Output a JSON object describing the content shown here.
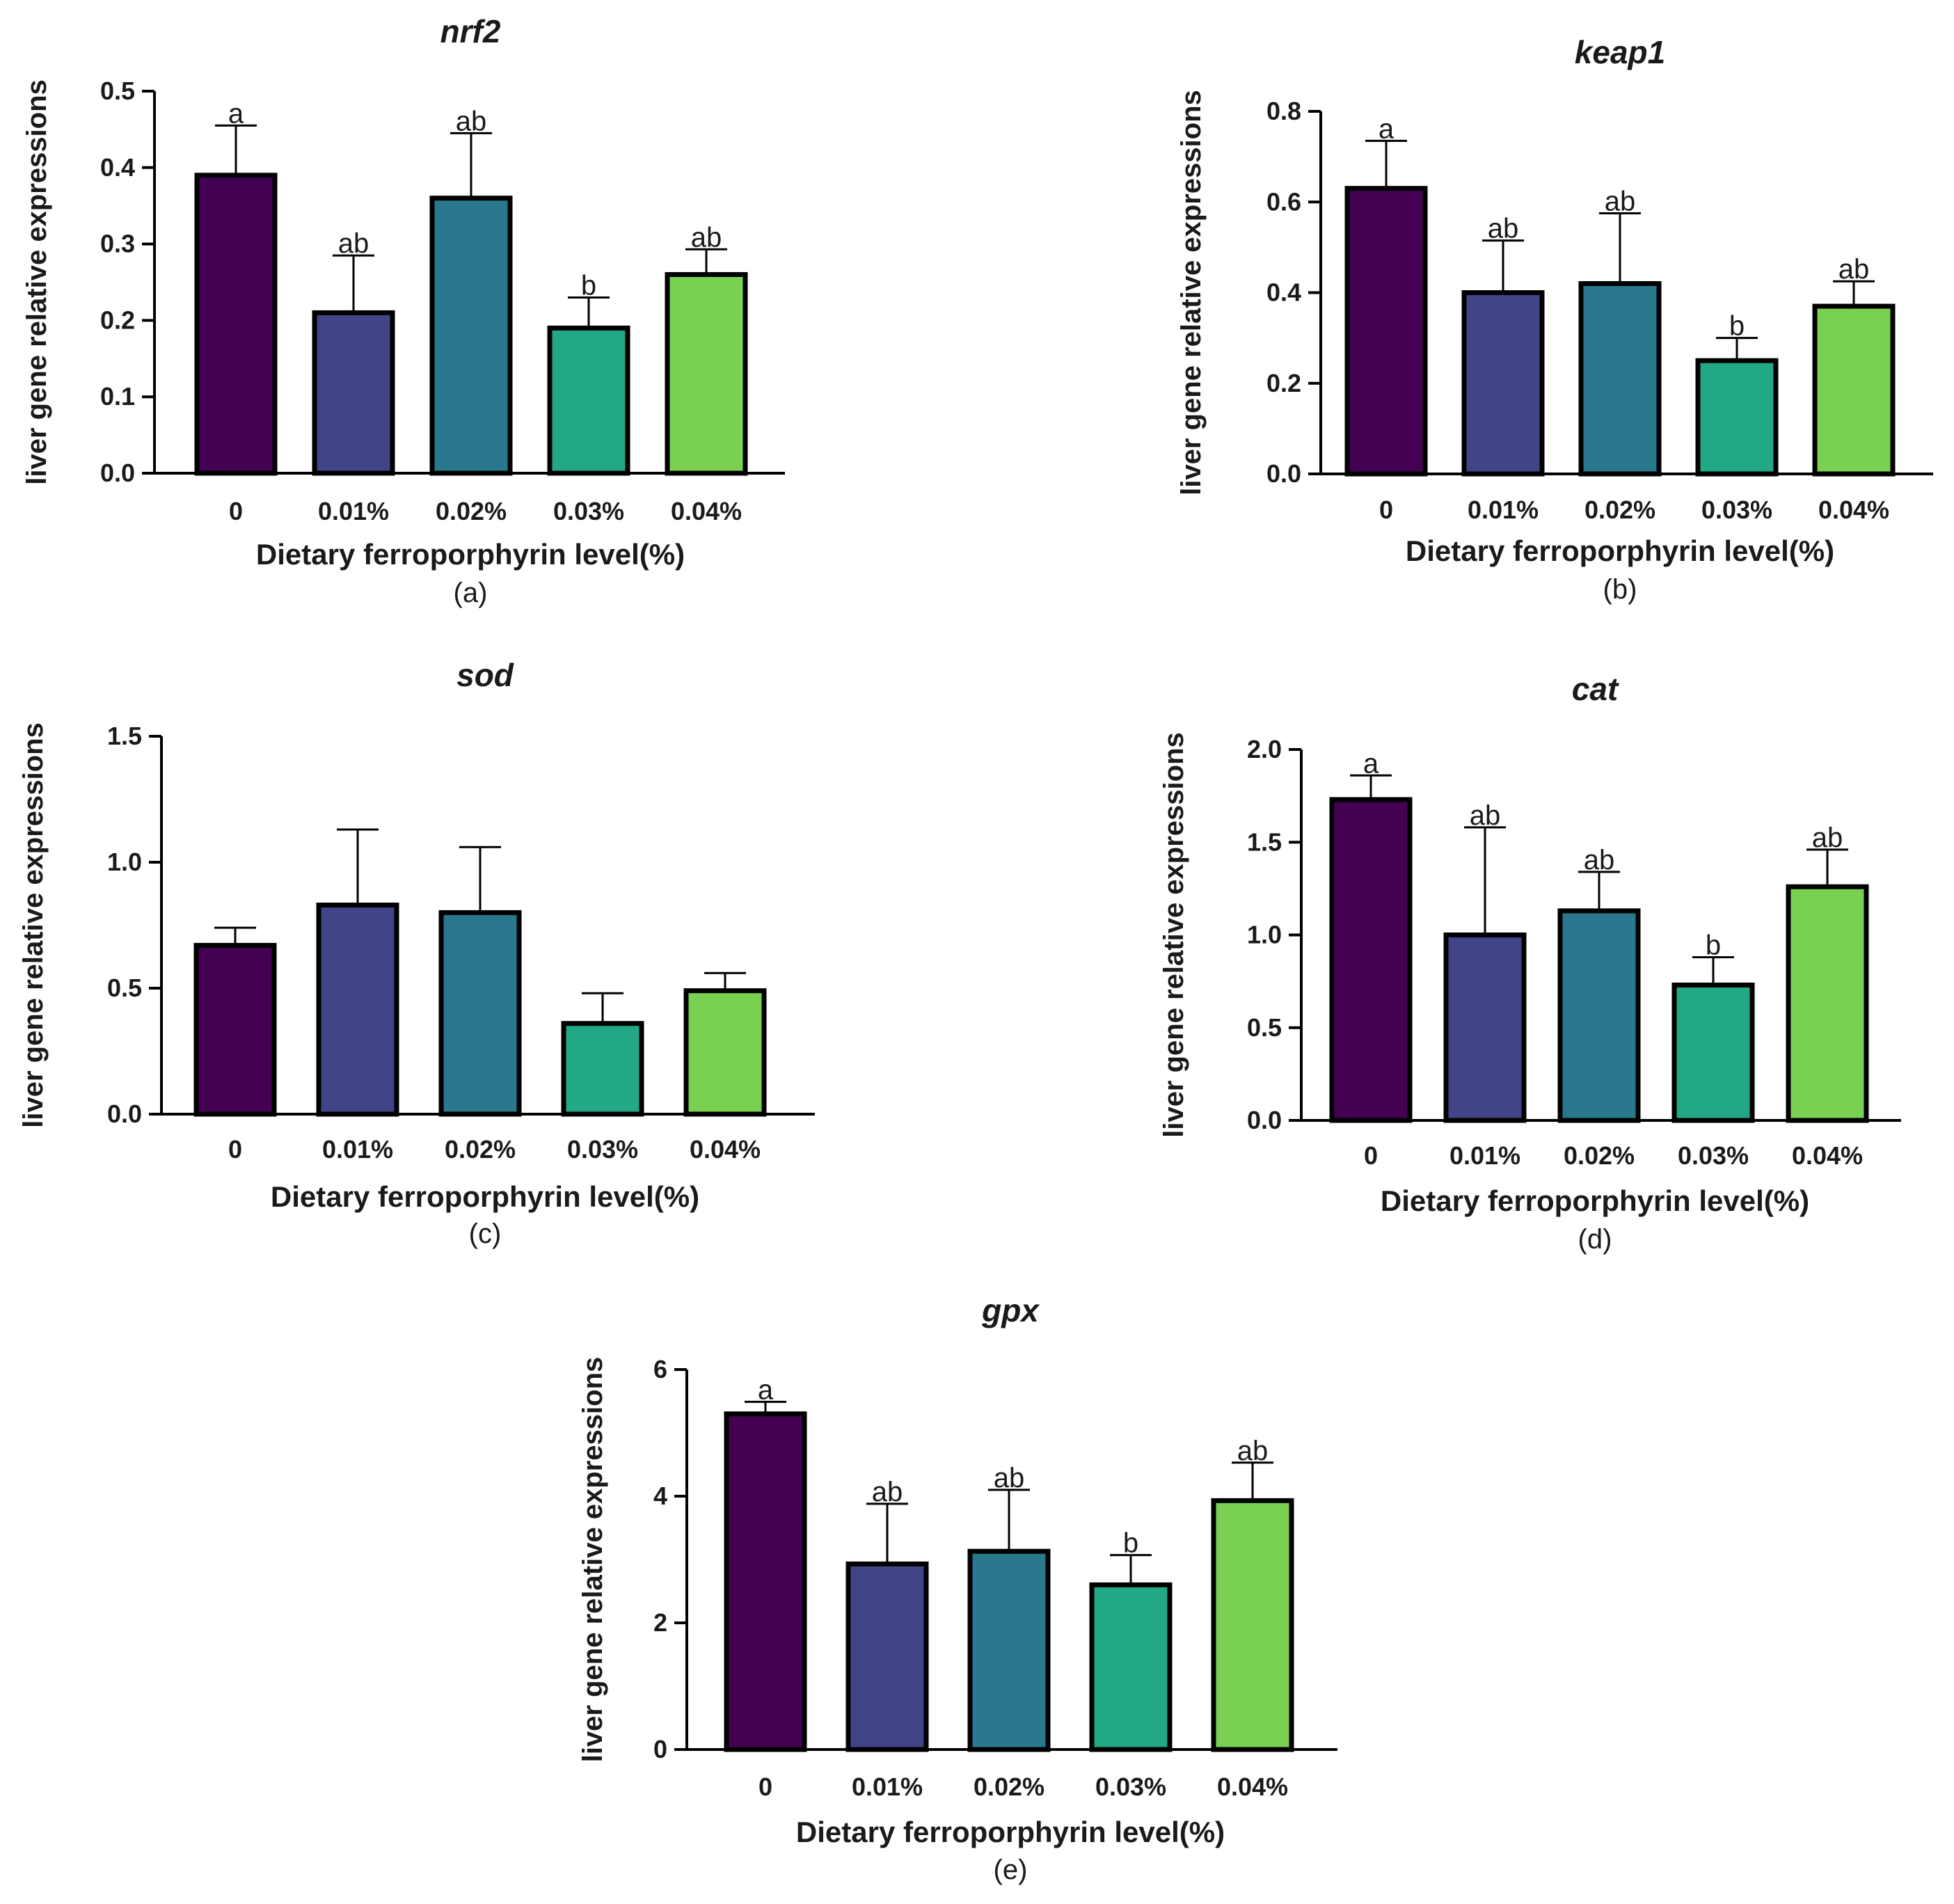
{
  "palette": [
    "#440154",
    "#414487",
    "#2a788e",
    "#22a884",
    "#7ad151"
  ],
  "chart_data": [
    {
      "type": "bar",
      "title": "nrf2",
      "panel_label": "(a)",
      "xlabel": "Dietary ferroporphyrin level(%)",
      "ylabel": "liver gene relative expressions",
      "categories": [
        "0",
        "0.01%",
        "0.02%",
        "0.03%",
        "0.04%"
      ],
      "values": [
        0.39,
        0.21,
        0.36,
        0.19,
        0.26
      ],
      "errors": [
        0.065,
        0.075,
        0.085,
        0.04,
        0.033
      ],
      "significance": [
        "a",
        "ab",
        "ab",
        "b",
        "ab"
      ],
      "ylim": [
        0,
        0.5
      ],
      "yticks": [
        "0.0",
        "0.1",
        "0.2",
        "0.3",
        "0.4",
        "0.5"
      ]
    },
    {
      "type": "bar",
      "title": "keap1",
      "panel_label": "(b)",
      "xlabel": "Dietary ferroporphyrin level(%)",
      "ylabel": "liver gene relative expressions",
      "categories": [
        "0",
        "0.01%",
        "0.02%",
        "0.03%",
        "0.04%"
      ],
      "values": [
        0.63,
        0.4,
        0.42,
        0.25,
        0.37
      ],
      "errors": [
        0.105,
        0.115,
        0.155,
        0.05,
        0.055
      ],
      "significance": [
        "a",
        "ab",
        "ab",
        "b",
        "ab"
      ],
      "ylim": [
        0,
        0.8
      ],
      "yticks": [
        "0.0",
        "0.2",
        "0.4",
        "0.6",
        "0.8"
      ]
    },
    {
      "type": "bar",
      "title": "sod",
      "panel_label": "(c)",
      "xlabel": "Dietary ferroporphyrin level(%)",
      "ylabel": "liver gene relative expressions",
      "categories": [
        "0",
        "0.01%",
        "0.02%",
        "0.03%",
        "0.04%"
      ],
      "values": [
        0.67,
        0.83,
        0.8,
        0.36,
        0.49
      ],
      "errors": [
        0.07,
        0.3,
        0.26,
        0.12,
        0.07
      ],
      "significance": [
        "",
        "",
        "",
        "",
        ""
      ],
      "ylim": [
        0,
        1.5
      ],
      "yticks": [
        "0.0",
        "0.5",
        "1.0",
        "1.5"
      ]
    },
    {
      "type": "bar",
      "title": "cat",
      "panel_label": "(d)",
      "xlabel": "Dietary ferroporphyrin level(%)",
      "ylabel": "liver gene relative expressions",
      "categories": [
        "0",
        "0.01%",
        "0.02%",
        "0.03%",
        "0.04%"
      ],
      "values": [
        1.73,
        1.0,
        1.13,
        0.73,
        1.26
      ],
      "errors": [
        0.13,
        0.58,
        0.21,
        0.15,
        0.2
      ],
      "significance": [
        "a",
        "ab",
        "ab",
        "b",
        "ab"
      ],
      "ylim": [
        0,
        2.0
      ],
      "yticks": [
        "0.0",
        "0.5",
        "1.0",
        "1.5",
        "2.0"
      ]
    },
    {
      "type": "bar",
      "title": "gpx",
      "panel_label": "(e)",
      "xlabel": "Dietary ferroporphyrin level(%)",
      "ylabel": "liver gene relative expressions",
      "categories": [
        "0",
        "0.01%",
        "0.02%",
        "0.03%",
        "0.04%"
      ],
      "values": [
        5.3,
        2.93,
        3.13,
        2.6,
        3.93
      ],
      "errors": [
        0.19,
        0.95,
        0.97,
        0.47,
        0.6
      ],
      "significance": [
        "a",
        "ab",
        "ab",
        "b",
        "ab"
      ],
      "ylim": [
        0,
        6
      ],
      "yticks": [
        "0",
        "2",
        "4",
        "6"
      ]
    }
  ]
}
